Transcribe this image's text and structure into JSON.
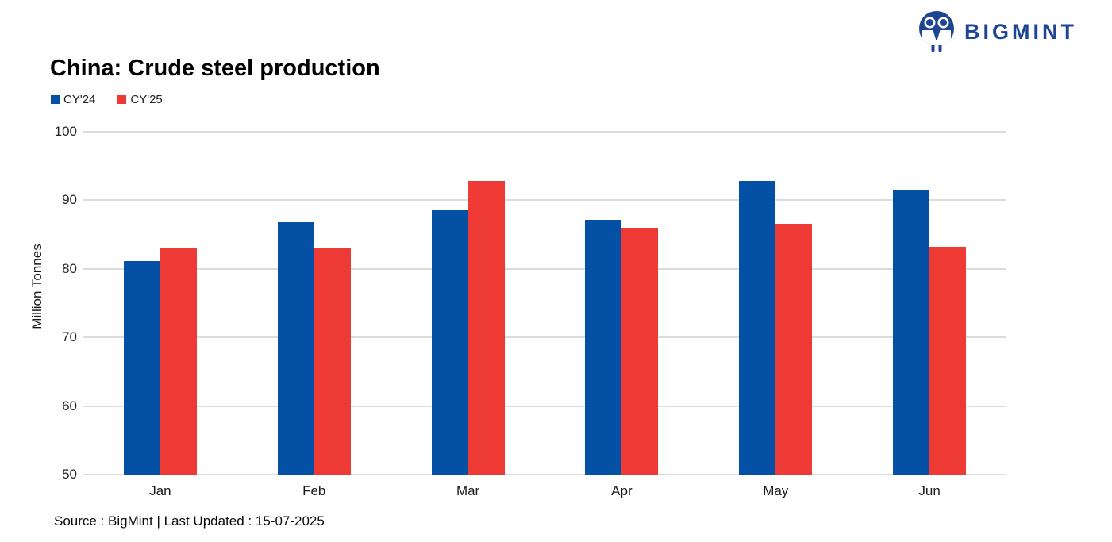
{
  "logo": {
    "text": "BIGMINT",
    "color": "#1e4494",
    "icon": "bigmint-people-icon"
  },
  "header": {
    "title": "China: Crude steel production"
  },
  "footer": {
    "source_text": "Source : BigMint | Last Updated : 15-07-2025"
  },
  "chart_data": {
    "type": "bar",
    "title": "China: Crude steel production",
    "categories": [
      "Jan",
      "Feb",
      "Mar",
      "Apr",
      "May",
      "Jun"
    ],
    "series": [
      {
        "name": "CY'24",
        "color": "#0450a4",
        "values": [
          81.1,
          86.8,
          88.5,
          87.1,
          92.8,
          91.5
        ]
      },
      {
        "name": "CY'25",
        "color": "#ee3a34",
        "values": [
          83.1,
          83.1,
          92.8,
          86.0,
          86.6,
          83.2
        ]
      }
    ],
    "xlabel": "",
    "ylabel": "Million Tonnes",
    "ylim": [
      50,
      100
    ],
    "yticks": [
      50,
      60,
      70,
      80,
      90,
      100
    ],
    "grid": true,
    "gridline_color": "#dcdcdc",
    "legend_position": "top-left"
  }
}
